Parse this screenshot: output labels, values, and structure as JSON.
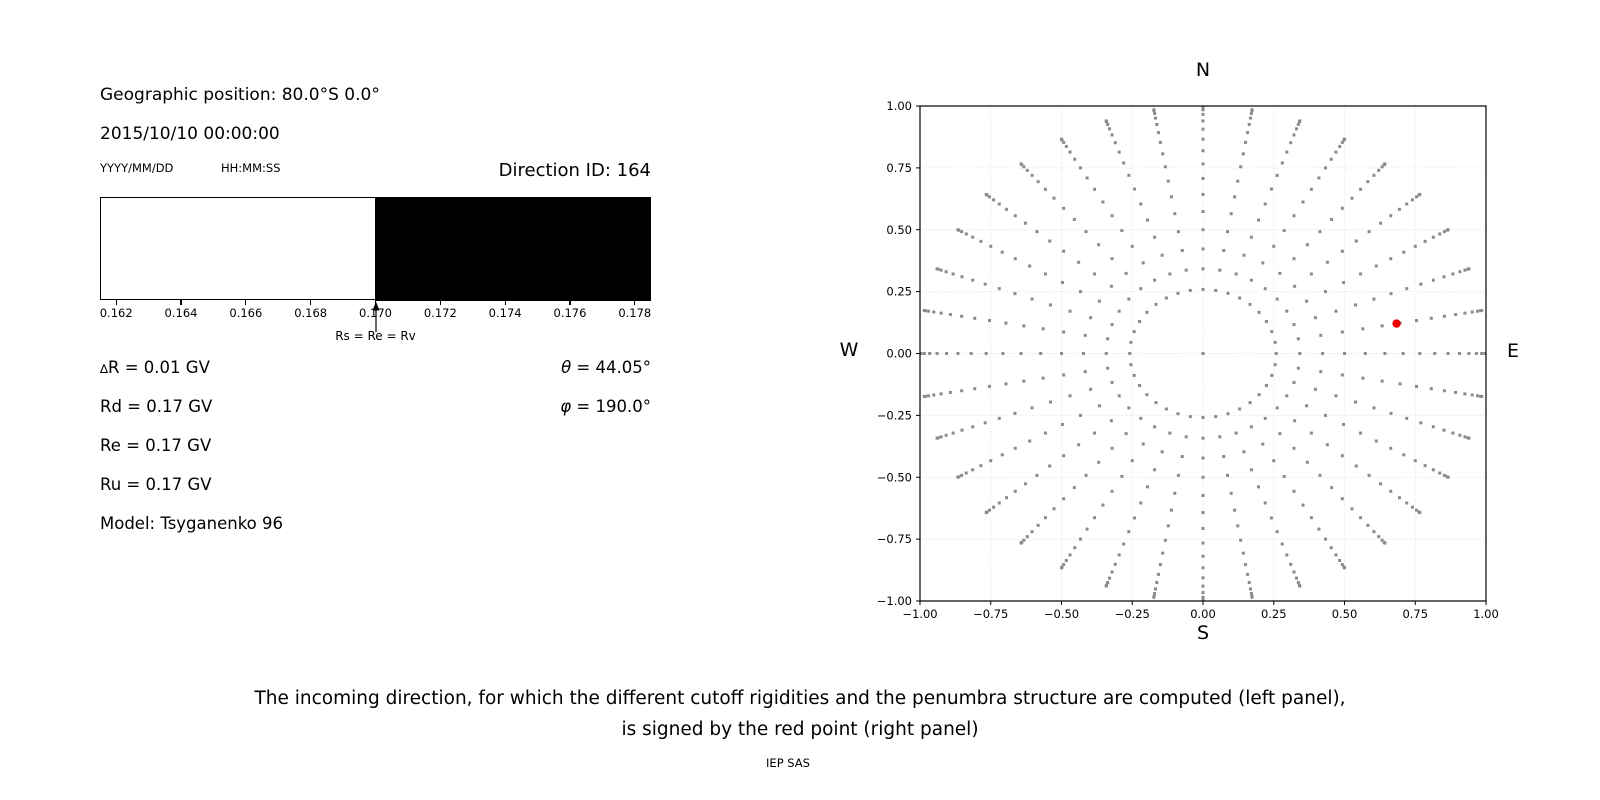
{
  "header": {
    "geo_position": "Geographic position: 80.0°S 0.0°",
    "datetime": "2015/10/10 00:00:00",
    "date_format": "YYYY/MM/DD",
    "time_format": "HH:MM:SS",
    "direction_id": "Direction ID: 164"
  },
  "values": {
    "delta_symbol": "∆",
    "delta_r_rest": "R = 0.01 GV",
    "rd": "Rd = 0.17 GV",
    "re": "Re = 0.17 GV",
    "ru": "Ru = 0.17 GV",
    "model": "Model: Tsyganenko 96",
    "theta_symbol": "θ",
    "theta_rest": " = 44.05°",
    "phi_symbol": "φ",
    "phi_rest": " = 190.0°"
  },
  "caption": {
    "line1": "The incoming direction, for which the different cutoff rigidities and the penumbra structure are computed (left panel),",
    "line2": "is signed by the red point (right panel)",
    "credit": "IEP SAS"
  },
  "chart_data": [
    {
      "type": "bar",
      "name": "penumbra-structure",
      "xlim": [
        0.1615,
        0.1785
      ],
      "x_ticks": [
        0.162,
        0.164,
        0.166,
        0.168,
        0.17,
        0.172,
        0.174,
        0.176,
        0.178
      ],
      "tick_decimals": 3,
      "boundary": 0.17,
      "segments": [
        {
          "from": 0.1615,
          "to": 0.17,
          "color": "#ffffff",
          "meaning": "allowed rigidities"
        },
        {
          "from": 0.17,
          "to": 0.1785,
          "color": "#000000",
          "meaning": "forbidden rigidities"
        }
      ],
      "annotation": {
        "text": "Rs = Re = Rv",
        "x": 0.17
      }
    },
    {
      "type": "scatter",
      "name": "incoming-direction-grid",
      "xlim": [
        -1,
        1
      ],
      "ylim": [
        -1,
        1
      ],
      "x_ticks": [
        -1.0,
        -0.75,
        -0.5,
        -0.25,
        0.0,
        0.25,
        0.5,
        0.75,
        1.0
      ],
      "y_ticks": [
        -1.0,
        -0.75,
        -0.5,
        -0.25,
        0.0,
        0.25,
        0.5,
        0.75,
        1.0
      ],
      "tick_decimals": 2,
      "grid": true,
      "grid_color": "#e0e0e0",
      "compass": {
        "top": "N",
        "bottom": "S",
        "left": "W",
        "right": "E"
      },
      "direction_grid": {
        "azimuth_start_deg": 0,
        "azimuth_step_deg": 10,
        "azimuth_count": 36,
        "zenith_start_deg": 15,
        "zenith_step_deg": 5,
        "zenith_end_deg": 90,
        "radius_mapping": "sin(zenith)",
        "center_point": true,
        "marker": "square",
        "marker_size_px": 3,
        "color": "#8a8a8a"
      },
      "red_point": {
        "x": 0.684,
        "y": 0.121,
        "zenith_deg": 44.05,
        "azimuth_deg": 190,
        "color": "#ee0000",
        "radius_px": 4.2
      }
    }
  ]
}
